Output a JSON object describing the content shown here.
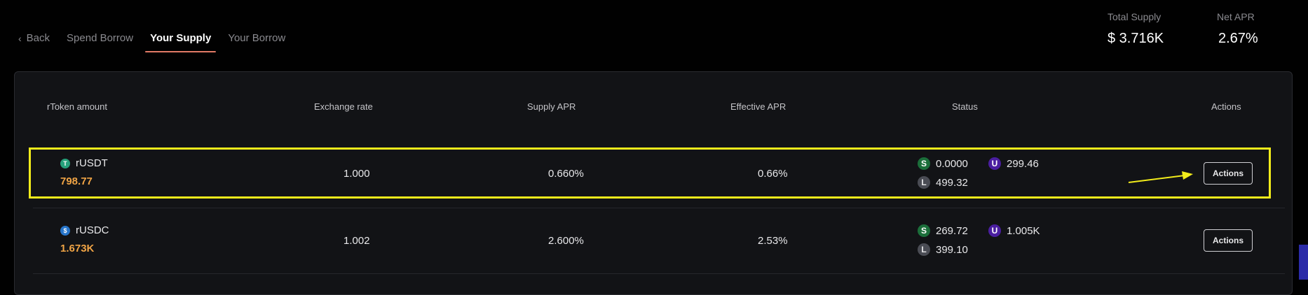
{
  "nav": {
    "back_label": "Back",
    "items": [
      {
        "label": "Spend Borrow"
      },
      {
        "label": "Your Supply"
      },
      {
        "label": "Your Borrow"
      }
    ]
  },
  "stats": {
    "total_supply": {
      "label": "Total Supply",
      "value": "$ 3.716K"
    },
    "net_apr": {
      "label": "Net APR",
      "value": "2.67%"
    }
  },
  "table": {
    "headers": {
      "rtoken": "rToken amount",
      "exchange": "Exchange rate",
      "supply_apr": "Supply APR",
      "effective_apr": "Effective APR",
      "status": "Status",
      "actions": "Actions"
    },
    "rows": [
      {
        "token": "rUSDT",
        "icon": "tether-icon",
        "icon_color": "#26a17b",
        "amount": "798.77",
        "exchange_rate": "1.000",
        "supply_apr": "0.660%",
        "effective_apr": "0.66%",
        "status": {
          "S": "0.0000",
          "U": "299.46",
          "L": "499.32"
        },
        "action_label": "Actions"
      },
      {
        "token": "rUSDC",
        "icon": "usdc-icon",
        "icon_color": "#2775ca",
        "amount": "1.673K",
        "exchange_rate": "1.002",
        "supply_apr": "2.600%",
        "effective_apr": "2.53%",
        "status": {
          "S": "269.72",
          "U": "1.005K",
          "L": "399.10"
        },
        "action_label": "Actions"
      }
    ]
  },
  "status_badges": {
    "s": "S",
    "u": "U",
    "l": "L"
  },
  "colors": {
    "background": "#010101",
    "panel": "#121316",
    "active_tab_underline": "#e27a66",
    "amount": "#f0a445",
    "highlight": "#f2ec1b",
    "badge_s": "#1b6e3a",
    "badge_u": "#4a1ea0",
    "badge_l": "#4a4c54"
  }
}
